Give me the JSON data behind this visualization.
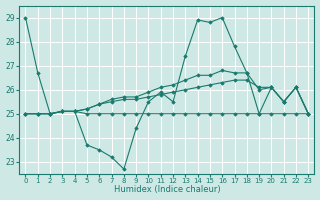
{
  "xlabel": "Humidex (Indice chaleur)",
  "bg_color": "#cde8e5",
  "grid_color": "#ffffff",
  "line_color": "#1a7a6e",
  "xlim": [
    -0.5,
    23.5
  ],
  "ylim": [
    22.5,
    29.5
  ],
  "xticks": [
    0,
    1,
    2,
    3,
    4,
    5,
    6,
    7,
    8,
    9,
    10,
    11,
    12,
    13,
    14,
    15,
    16,
    17,
    18,
    19,
    20,
    21,
    22,
    23
  ],
  "yticks": [
    23,
    24,
    25,
    26,
    27,
    28,
    29
  ],
  "series": [
    [
      29.0,
      26.7,
      25.0,
      25.1,
      25.1,
      23.7,
      23.5,
      23.2,
      22.7,
      24.4,
      25.5,
      25.9,
      25.5,
      27.4,
      28.9,
      28.8,
      29.0,
      27.8,
      26.7,
      25.0,
      26.1,
      25.5,
      26.1,
      25.0
    ],
    [
      25.0,
      25.0,
      25.0,
      25.1,
      25.1,
      25.0,
      25.0,
      25.0,
      25.0,
      25.0,
      25.0,
      25.0,
      25.0,
      25.0,
      25.0,
      25.0,
      25.0,
      25.0,
      25.0,
      25.0,
      25.0,
      25.0,
      25.0,
      25.0
    ],
    [
      25.0,
      25.0,
      25.0,
      25.1,
      25.1,
      25.2,
      25.4,
      25.5,
      25.6,
      25.6,
      25.7,
      25.8,
      25.9,
      26.0,
      26.1,
      26.2,
      26.3,
      26.4,
      26.4,
      26.1,
      26.1,
      25.5,
      26.1,
      25.0
    ],
    [
      25.0,
      25.0,
      25.0,
      25.1,
      25.1,
      25.2,
      25.4,
      25.6,
      25.7,
      25.7,
      25.9,
      26.1,
      26.2,
      26.4,
      26.6,
      26.6,
      26.8,
      26.7,
      26.7,
      26.0,
      26.1,
      25.5,
      26.1,
      25.0
    ]
  ]
}
